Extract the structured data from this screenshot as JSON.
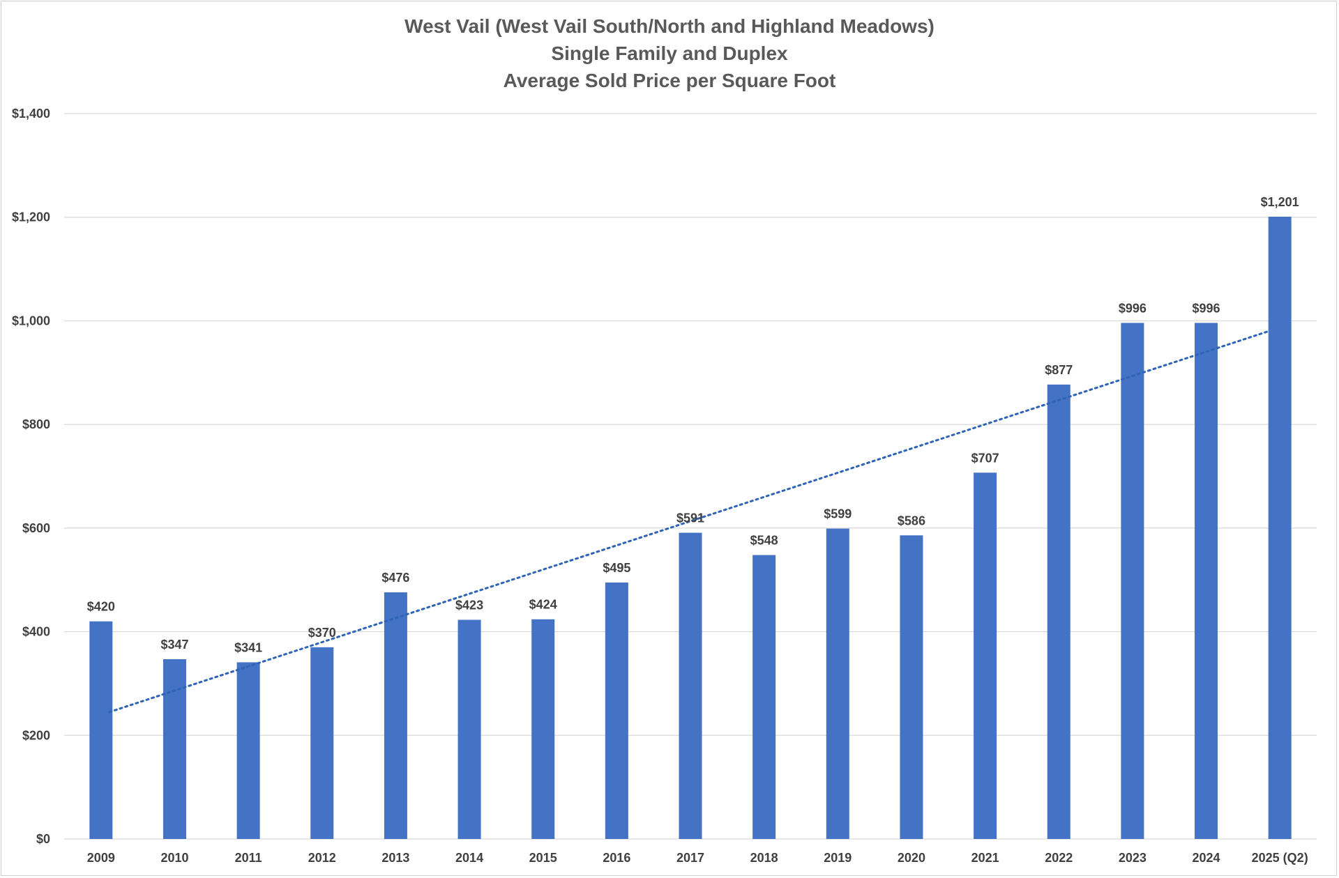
{
  "chart_data": {
    "type": "bar",
    "title": "West Vail (West Vail South/North and Highland Meadows)",
    "subtitle_lines": [
      "Single Family and Duplex",
      "Average Sold Price per Square Foot"
    ],
    "xlabel": "",
    "ylabel": "",
    "categories": [
      "2009",
      "2010",
      "2011",
      "2012",
      "2013",
      "2014",
      "2015",
      "2016",
      "2017",
      "2018",
      "2019",
      "2020",
      "2021",
      "2022",
      "2023",
      "2024",
      "2025 (Q2)"
    ],
    "values": [
      420,
      347,
      341,
      370,
      476,
      423,
      424,
      495,
      591,
      548,
      599,
      586,
      707,
      877,
      996,
      996,
      1201
    ],
    "data_labels": [
      "$420",
      "$347",
      "$341",
      "$370",
      "$476",
      "$423",
      "$424",
      "$495",
      "$591",
      "$548",
      "$599",
      "$586",
      "$707",
      "$877",
      "$996",
      "$996",
      "$1,201"
    ],
    "ylim": [
      0,
      1400
    ],
    "yticks": [
      0,
      200,
      400,
      600,
      800,
      1000,
      1200,
      1400
    ],
    "ytick_labels": [
      "$0",
      "$200",
      "$400",
      "$600",
      "$800",
      "$1,000",
      "$1,200",
      "$1,400"
    ],
    "grid": true,
    "legend": "none",
    "trendline": {
      "type": "linear",
      "style": "dotted",
      "start_value": 245,
      "end_value": 980
    },
    "colors": {
      "bar": "#4472C4",
      "trend": "#2E64B7",
      "grid": "#D9D9D9",
      "text": "#404040",
      "title": "#595959"
    }
  }
}
